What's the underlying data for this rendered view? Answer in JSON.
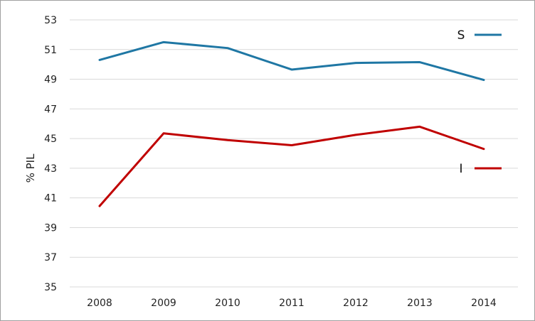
{
  "chart_data": {
    "type": "line",
    "title": "",
    "xlabel": "",
    "ylabel": "% PIL",
    "x": [
      "2008",
      "2009",
      "2010",
      "2011",
      "2012",
      "2013",
      "2014"
    ],
    "ylim": [
      35,
      53
    ],
    "yticks": [
      35,
      37,
      39,
      41,
      43,
      45,
      47,
      49,
      51,
      53
    ],
    "grid": true,
    "legend": "right, inline labels",
    "series": [
      {
        "name": "S",
        "color": "#1f77a4",
        "values": [
          50.3,
          51.5,
          51.1,
          49.65,
          50.1,
          50.15,
          48.95
        ]
      },
      {
        "name": "I",
        "color": "#c00000",
        "values": [
          40.45,
          45.35,
          44.9,
          44.55,
          45.25,
          45.8,
          44.3
        ]
      }
    ]
  }
}
